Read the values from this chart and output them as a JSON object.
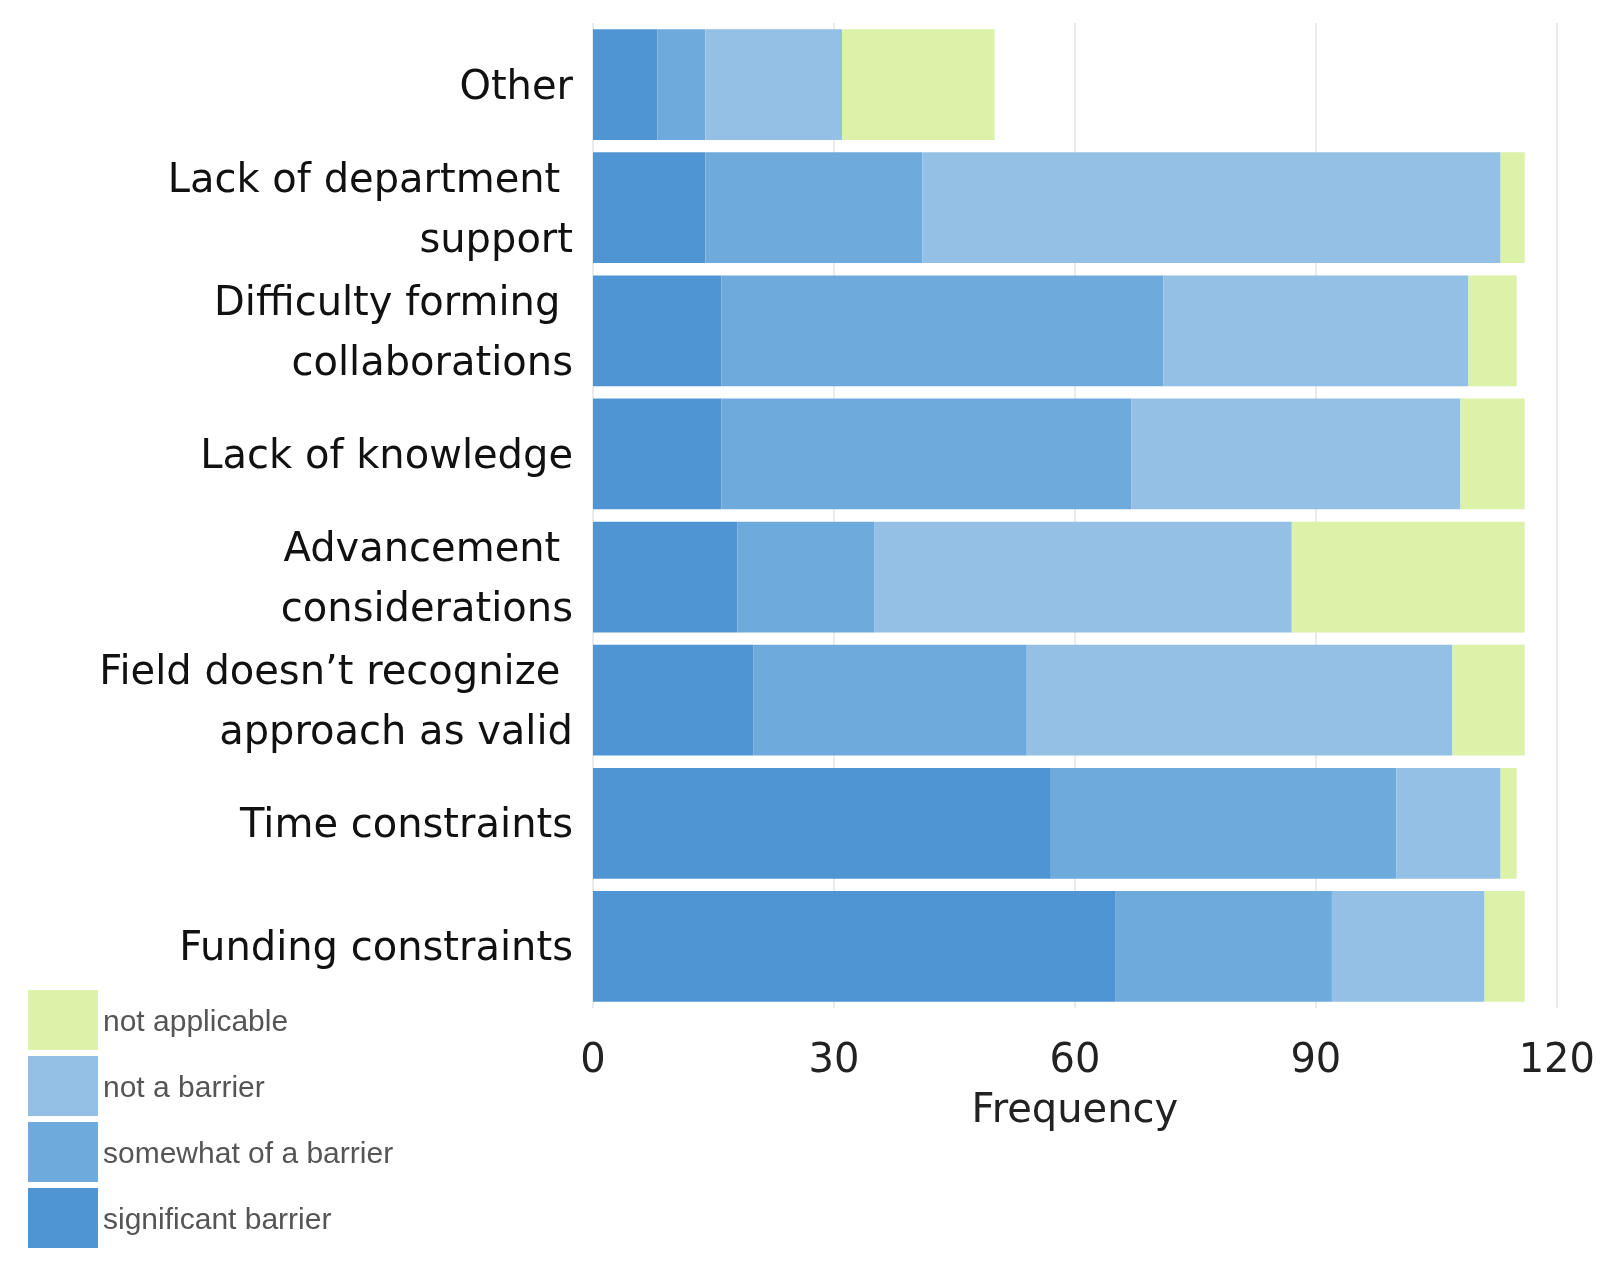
{
  "chart_data": {
    "type": "bar",
    "orientation": "horizontal",
    "stacked": true,
    "xlabel": "Frequency",
    "categories": [
      "Other",
      "Lack of department support",
      "Difficulty forming collaborations",
      "Lack of knowledge",
      "Advancement considerations",
      "Field doesn’t recognize approach as valid",
      "Time constraints",
      "Funding constraints"
    ],
    "series": [
      {
        "name": "significant barrier",
        "color": "#4f95d3",
        "values": [
          8,
          14,
          16,
          16,
          18,
          20,
          57,
          65
        ]
      },
      {
        "name": "somewhat of a barrier",
        "color": "#6eaadc",
        "values": [
          6,
          27,
          55,
          51,
          17,
          34,
          43,
          27
        ]
      },
      {
        "name": "not a barrier",
        "color": "#94c0e6",
        "values": [
          17,
          72,
          38,
          41,
          52,
          53,
          13,
          19
        ]
      },
      {
        "name": "not applicable",
        "color": "#dcf2a8",
        "values": [
          19,
          3,
          6,
          8,
          29,
          9,
          2,
          5
        ]
      }
    ],
    "xlim": [
      0,
      120
    ],
    "xticks": [
      0,
      30,
      60,
      90,
      120
    ],
    "grid": true,
    "legend": "bottom left"
  }
}
